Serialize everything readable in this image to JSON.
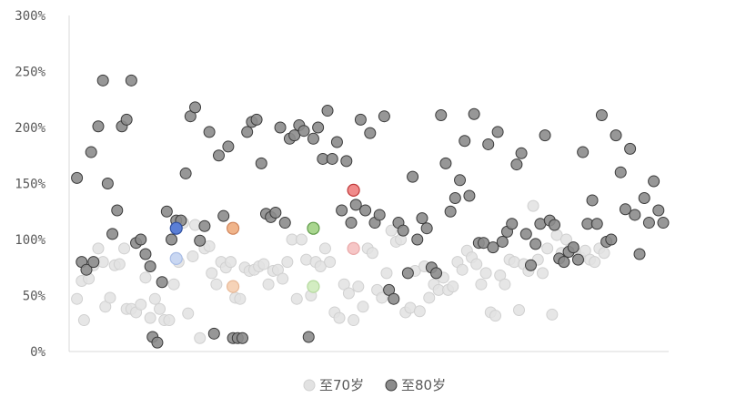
{
  "chart_data": {
    "type": "scatter",
    "title": "",
    "xlabel": "",
    "ylabel": "",
    "xlim": [
      0,
      249
    ],
    "ylim": [
      0,
      300
    ],
    "y_ticks": [
      "0%",
      "50%",
      "100%",
      "150%",
      "200%",
      "250%",
      "300%"
    ],
    "grid": false,
    "legend_position": "bottom",
    "colors": {
      "to70_fill": "#e2e2e2",
      "to70_stroke": "#d0d0d0",
      "to80_fill": "#8c8c8c",
      "to80_stroke": "#3a3a3a",
      "axis": "#d9d9d9",
      "text": "#595959"
    },
    "series": [
      {
        "name": "至70岁",
        "points": [
          [
            1,
            47
          ],
          [
            3,
            63
          ],
          [
            4,
            28
          ],
          [
            6,
            65
          ],
          [
            8,
            77
          ],
          [
            10,
            92
          ],
          [
            12,
            80
          ],
          [
            13,
            40
          ],
          [
            15,
            48
          ],
          [
            17,
            77
          ],
          [
            19,
            78
          ],
          [
            21,
            92
          ],
          [
            22,
            38
          ],
          [
            24,
            38
          ],
          [
            26,
            35
          ],
          [
            28,
            42
          ],
          [
            30,
            66
          ],
          [
            32,
            30
          ],
          [
            34,
            47
          ],
          [
            36,
            38
          ],
          [
            38,
            28
          ],
          [
            40,
            28
          ],
          [
            42,
            60
          ],
          [
            44,
            80
          ],
          [
            46,
            115
          ],
          [
            48,
            34
          ],
          [
            50,
            85
          ],
          [
            51,
            113
          ],
          [
            53,
            12
          ],
          [
            55,
            92
          ],
          [
            57,
            94
          ],
          [
            58,
            70
          ],
          [
            60,
            60
          ],
          [
            62,
            80
          ],
          [
            64,
            75
          ],
          [
            66,
            80
          ],
          [
            68,
            48
          ],
          [
            70,
            47
          ],
          [
            72,
            75
          ],
          [
            74,
            72
          ],
          [
            76,
            73
          ],
          [
            78,
            76
          ],
          [
            80,
            78
          ],
          [
            82,
            60
          ],
          [
            84,
            72
          ],
          [
            86,
            73
          ],
          [
            88,
            65
          ],
          [
            90,
            80
          ],
          [
            92,
            100
          ],
          [
            94,
            47
          ],
          [
            96,
            100
          ],
          [
            98,
            82
          ],
          [
            100,
            50
          ],
          [
            102,
            80
          ],
          [
            104,
            76
          ],
          [
            106,
            92
          ],
          [
            108,
            80
          ],
          [
            110,
            35
          ],
          [
            112,
            30
          ],
          [
            114,
            60
          ],
          [
            116,
            52
          ],
          [
            118,
            28
          ],
          [
            120,
            58
          ],
          [
            122,
            40
          ],
          [
            124,
            92
          ],
          [
            126,
            88
          ],
          [
            128,
            55
          ],
          [
            130,
            48
          ],
          [
            132,
            70
          ],
          [
            134,
            108
          ],
          [
            136,
            98
          ],
          [
            138,
            100
          ],
          [
            140,
            35
          ],
          [
            142,
            39
          ],
          [
            144,
            72
          ],
          [
            146,
            36
          ],
          [
            148,
            76
          ],
          [
            150,
            48
          ],
          [
            152,
            60
          ],
          [
            154,
            55
          ],
          [
            156,
            66
          ],
          [
            158,
            55
          ],
          [
            160,
            58
          ],
          [
            162,
            80
          ],
          [
            164,
            73
          ],
          [
            166,
            90
          ],
          [
            168,
            84
          ],
          [
            170,
            78
          ],
          [
            172,
            60
          ],
          [
            174,
            70
          ],
          [
            176,
            35
          ],
          [
            178,
            32
          ],
          [
            180,
            68
          ],
          [
            182,
            60
          ],
          [
            184,
            82
          ],
          [
            186,
            80
          ],
          [
            188,
            37
          ],
          [
            190,
            78
          ],
          [
            192,
            72
          ],
          [
            194,
            130
          ],
          [
            196,
            82
          ],
          [
            198,
            70
          ],
          [
            200,
            92
          ],
          [
            202,
            33
          ],
          [
            204,
            104
          ],
          [
            206,
            88
          ],
          [
            208,
            100
          ],
          [
            210,
            92
          ],
          [
            212,
            88
          ],
          [
            214,
            84
          ],
          [
            216,
            90
          ],
          [
            218,
            82
          ],
          [
            220,
            80
          ],
          [
            222,
            92
          ],
          [
            224,
            88
          ]
        ]
      },
      {
        "name": "至80岁",
        "points": [
          [
            1,
            155
          ],
          [
            3,
            80
          ],
          [
            5,
            73
          ],
          [
            7,
            178
          ],
          [
            8,
            80
          ],
          [
            10,
            201
          ],
          [
            12,
            242
          ],
          [
            14,
            150
          ],
          [
            16,
            105
          ],
          [
            18,
            126
          ],
          [
            20,
            201
          ],
          [
            22,
            207
          ],
          [
            24,
            242
          ],
          [
            26,
            97
          ],
          [
            28,
            100
          ],
          [
            30,
            87
          ],
          [
            32,
            76
          ],
          [
            33,
            13
          ],
          [
            35,
            8
          ],
          [
            37,
            62
          ],
          [
            39,
            125
          ],
          [
            41,
            100
          ],
          [
            43,
            117
          ],
          [
            45,
            117
          ],
          [
            47,
            159
          ],
          [
            49,
            210
          ],
          [
            51,
            218
          ],
          [
            53,
            99
          ],
          [
            55,
            112
          ],
          [
            57,
            196
          ],
          [
            59,
            16
          ],
          [
            61,
            175
          ],
          [
            63,
            121
          ],
          [
            65,
            183
          ],
          [
            67,
            12
          ],
          [
            69,
            12
          ],
          [
            71,
            12
          ],
          [
            73,
            196
          ],
          [
            75,
            205
          ],
          [
            77,
            207
          ],
          [
            79,
            168
          ],
          [
            81,
            123
          ],
          [
            83,
            120
          ],
          [
            85,
            124
          ],
          [
            87,
            200
          ],
          [
            89,
            115
          ],
          [
            91,
            190
          ],
          [
            93,
            193
          ],
          [
            95,
            202
          ],
          [
            97,
            197
          ],
          [
            99,
            13
          ],
          [
            101,
            190
          ],
          [
            103,
            200
          ],
          [
            105,
            172
          ],
          [
            107,
            215
          ],
          [
            109,
            172
          ],
          [
            111,
            187
          ],
          [
            113,
            126
          ],
          [
            115,
            170
          ],
          [
            117,
            115
          ],
          [
            119,
            131
          ],
          [
            121,
            207
          ],
          [
            123,
            126
          ],
          [
            125,
            195
          ],
          [
            127,
            115
          ],
          [
            129,
            122
          ],
          [
            131,
            210
          ],
          [
            133,
            55
          ],
          [
            135,
            47
          ],
          [
            137,
            115
          ],
          [
            139,
            108
          ],
          [
            141,
            70
          ],
          [
            143,
            156
          ],
          [
            145,
            100
          ],
          [
            147,
            119
          ],
          [
            149,
            110
          ],
          [
            151,
            75
          ],
          [
            153,
            70
          ],
          [
            155,
            211
          ],
          [
            157,
            168
          ],
          [
            159,
            125
          ],
          [
            161,
            137
          ],
          [
            163,
            153
          ],
          [
            165,
            188
          ],
          [
            167,
            139
          ],
          [
            169,
            212
          ],
          [
            171,
            97
          ],
          [
            173,
            97
          ],
          [
            175,
            185
          ],
          [
            177,
            93
          ],
          [
            179,
            196
          ],
          [
            181,
            98
          ],
          [
            183,
            107
          ],
          [
            185,
            114
          ],
          [
            187,
            167
          ],
          [
            189,
            177
          ],
          [
            191,
            105
          ],
          [
            193,
            77
          ],
          [
            195,
            96
          ],
          [
            197,
            114
          ],
          [
            199,
            193
          ],
          [
            201,
            117
          ],
          [
            203,
            113
          ],
          [
            205,
            83
          ],
          [
            207,
            80
          ],
          [
            209,
            89
          ],
          [
            211,
            93
          ],
          [
            213,
            82
          ],
          [
            215,
            178
          ],
          [
            217,
            114
          ],
          [
            219,
            135
          ],
          [
            221,
            114
          ],
          [
            223,
            211
          ],
          [
            225,
            98
          ],
          [
            227,
            100
          ],
          [
            229,
            193
          ],
          [
            231,
            160
          ],
          [
            233,
            127
          ],
          [
            235,
            181
          ],
          [
            237,
            122
          ],
          [
            239,
            87
          ],
          [
            241,
            137
          ],
          [
            243,
            115
          ],
          [
            245,
            152
          ],
          [
            247,
            126
          ],
          [
            249,
            115
          ]
        ]
      }
    ],
    "highlighted_points": [
      {
        "x": 43,
        "y": 110,
        "fill": "#5b7fd6",
        "stroke": "#2f4f9f"
      },
      {
        "x": 43,
        "y": 83,
        "fill": "#c9d7f2",
        "stroke": "#a9bde6"
      },
      {
        "x": 67,
        "y": 110,
        "fill": "#f0b48a",
        "stroke": "#d0845a"
      },
      {
        "x": 67,
        "y": 58,
        "fill": "#f6d3b8",
        "stroke": "#e8b896"
      },
      {
        "x": 101,
        "y": 110,
        "fill": "#a9d68f",
        "stroke": "#5e9a47"
      },
      {
        "x": 101,
        "y": 58,
        "fill": "#d3edc2",
        "stroke": "#b3d99c"
      },
      {
        "x": 118,
        "y": 144,
        "fill": "#f08a8a",
        "stroke": "#c03a3a"
      },
      {
        "x": 118,
        "y": 92,
        "fill": "#f6c6c6",
        "stroke": "#eaa8a8"
      }
    ]
  }
}
